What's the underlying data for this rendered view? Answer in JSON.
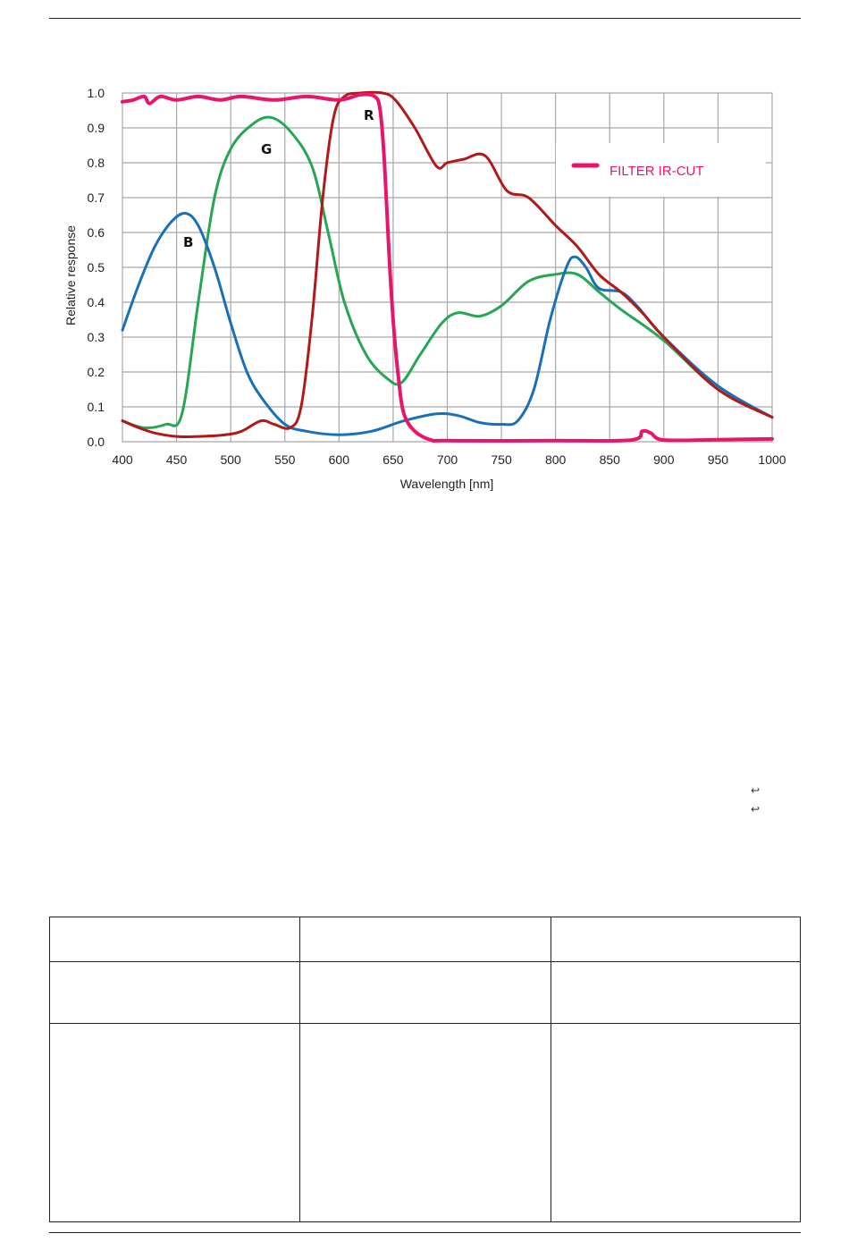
{
  "chart_data": {
    "type": "line",
    "xlabel": "Wavelength [nm]",
    "ylabel": "Relative response",
    "xlim": [
      400,
      1000
    ],
    "ylim": [
      0,
      1.0
    ],
    "x_ticks": [
      "400",
      "450",
      "500",
      "550",
      "600",
      "650",
      "700",
      "750",
      "800",
      "850",
      "900",
      "950",
      "1000"
    ],
    "y_ticks": [
      "0.0",
      "0.1",
      "0.2",
      "0.3",
      "0.4",
      "0.5",
      "0.6",
      "0.7",
      "0.8",
      "0.9",
      "1.0"
    ],
    "grid": true,
    "legend": {
      "placement": "top-right",
      "entries": [
        "FILTER IR-CUT"
      ]
    },
    "annotations": [
      "B",
      "G",
      "R"
    ],
    "series": [
      {
        "name": "FILTER IR-CUT",
        "color": "#e8166a",
        "points": [
          [
            400,
            0.975
          ],
          [
            410,
            0.98
          ],
          [
            420,
            0.99
          ],
          [
            425,
            0.97
          ],
          [
            435,
            0.99
          ],
          [
            450,
            0.98
          ],
          [
            470,
            0.99
          ],
          [
            490,
            0.98
          ],
          [
            510,
            0.99
          ],
          [
            540,
            0.98
          ],
          [
            570,
            0.99
          ],
          [
            600,
            0.98
          ],
          [
            620,
            0.995
          ],
          [
            633,
            0.99
          ],
          [
            638,
            0.95
          ],
          [
            642,
            0.8
          ],
          [
            646,
            0.55
          ],
          [
            650,
            0.35
          ],
          [
            655,
            0.18
          ],
          [
            660,
            0.08
          ],
          [
            670,
            0.03
          ],
          [
            685,
            0.005
          ],
          [
            700,
            0.003
          ],
          [
            800,
            0.003
          ],
          [
            870,
            0.005
          ],
          [
            880,
            0.03
          ],
          [
            888,
            0.025
          ],
          [
            900,
            0.005
          ],
          [
            950,
            0.006
          ],
          [
            1000,
            0.008
          ]
        ]
      },
      {
        "name": "B",
        "color": "#1a70b8",
        "points": [
          [
            400,
            0.32
          ],
          [
            415,
            0.45
          ],
          [
            430,
            0.56
          ],
          [
            445,
            0.63
          ],
          [
            458,
            0.655
          ],
          [
            470,
            0.62
          ],
          [
            485,
            0.5
          ],
          [
            500,
            0.34
          ],
          [
            515,
            0.2
          ],
          [
            530,
            0.12
          ],
          [
            550,
            0.05
          ],
          [
            570,
            0.03
          ],
          [
            600,
            0.02
          ],
          [
            630,
            0.03
          ],
          [
            660,
            0.06
          ],
          [
            690,
            0.08
          ],
          [
            710,
            0.075
          ],
          [
            730,
            0.055
          ],
          [
            750,
            0.05
          ],
          [
            765,
            0.06
          ],
          [
            780,
            0.15
          ],
          [
            795,
            0.35
          ],
          [
            810,
            0.5
          ],
          [
            818,
            0.53
          ],
          [
            828,
            0.5
          ],
          [
            840,
            0.44
          ],
          [
            860,
            0.43
          ],
          [
            875,
            0.39
          ],
          [
            900,
            0.3
          ],
          [
            950,
            0.16
          ],
          [
            1000,
            0.07
          ]
        ]
      },
      {
        "name": "G",
        "color": "#27a553",
        "points": [
          [
            400,
            0.06
          ],
          [
            420,
            0.04
          ],
          [
            440,
            0.05
          ],
          [
            455,
            0.08
          ],
          [
            470,
            0.4
          ],
          [
            485,
            0.7
          ],
          [
            500,
            0.84
          ],
          [
            520,
            0.91
          ],
          [
            537,
            0.93
          ],
          [
            555,
            0.89
          ],
          [
            575,
            0.79
          ],
          [
            590,
            0.6
          ],
          [
            605,
            0.4
          ],
          [
            625,
            0.25
          ],
          [
            645,
            0.18
          ],
          [
            658,
            0.17
          ],
          [
            675,
            0.25
          ],
          [
            695,
            0.34
          ],
          [
            710,
            0.37
          ],
          [
            730,
            0.36
          ],
          [
            750,
            0.39
          ],
          [
            775,
            0.46
          ],
          [
            800,
            0.48
          ],
          [
            820,
            0.48
          ],
          [
            840,
            0.43
          ],
          [
            860,
            0.38
          ],
          [
            900,
            0.29
          ],
          [
            950,
            0.15
          ],
          [
            1000,
            0.07
          ]
        ]
      },
      {
        "name": "R",
        "color": "#b01a1a",
        "points": [
          [
            400,
            0.06
          ],
          [
            415,
            0.04
          ],
          [
            430,
            0.025
          ],
          [
            450,
            0.015
          ],
          [
            470,
            0.015
          ],
          [
            495,
            0.02
          ],
          [
            510,
            0.03
          ],
          [
            528,
            0.06
          ],
          [
            540,
            0.05
          ],
          [
            555,
            0.04
          ],
          [
            565,
            0.1
          ],
          [
            575,
            0.35
          ],
          [
            585,
            0.7
          ],
          [
            595,
            0.93
          ],
          [
            605,
            0.99
          ],
          [
            620,
            1.0
          ],
          [
            640,
            1.0
          ],
          [
            652,
            0.98
          ],
          [
            670,
            0.9
          ],
          [
            690,
            0.79
          ],
          [
            700,
            0.8
          ],
          [
            715,
            0.81
          ],
          [
            735,
            0.82
          ],
          [
            755,
            0.72
          ],
          [
            775,
            0.7
          ],
          [
            800,
            0.62
          ],
          [
            820,
            0.56
          ],
          [
            840,
            0.48
          ],
          [
            860,
            0.43
          ],
          [
            880,
            0.37
          ],
          [
            900,
            0.3
          ],
          [
            950,
            0.15
          ],
          [
            1000,
            0.07
          ]
        ]
      }
    ]
  }
}
